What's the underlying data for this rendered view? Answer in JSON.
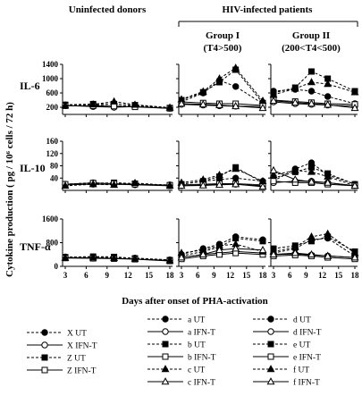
{
  "headers": {
    "uninfected": "Uninfected donors",
    "hiv": "HIV-infected patients",
    "group1_line1": "Group I",
    "group1_line2": "(T4>500)",
    "group2_line1": "Group II",
    "group2_line2": "(200<T4<500)"
  },
  "axes": {
    "ylabel": "Cytokine production ( pg / 10⁶ cells / 72 h)",
    "xlabel": "Days after onset of PHA-activation",
    "x_ticks": [
      3,
      6,
      9,
      12,
      15,
      18
    ],
    "x_range": [
      3,
      18
    ]
  },
  "chart_data": {
    "type": "line",
    "grid": false,
    "legend_placement": "bottom",
    "rows": [
      {
        "label": "IL-6",
        "ylim": [
          0,
          1400
        ],
        "y_ticks": [
          200,
          600,
          1000,
          1400
        ]
      },
      {
        "label": "IL-10",
        "ylim": [
          0,
          160
        ],
        "y_ticks": [
          40,
          80,
          120,
          160
        ]
      },
      {
        "label": "TNF-α",
        "ylim": [
          0,
          1600
        ],
        "y_ticks": [
          0,
          800,
          1600
        ]
      }
    ],
    "x": [
      3,
      7,
      10,
      13,
      18
    ],
    "series_styles": {
      "X UT": {
        "marker": "circle",
        "fill": true,
        "dash": true
      },
      "X IFN-T": {
        "marker": "circle",
        "fill": false,
        "dash": false
      },
      "Z UT": {
        "marker": "square",
        "fill": true,
        "dash": true
      },
      "Z IFN-T": {
        "marker": "square",
        "fill": false,
        "dash": false
      },
      "a UT": {
        "marker": "circle",
        "fill": true,
        "dash": true
      },
      "a IFN-T": {
        "marker": "circle",
        "fill": false,
        "dash": false
      },
      "b UT": {
        "marker": "square",
        "fill": true,
        "dash": true
      },
      "b IFN-T": {
        "marker": "square",
        "fill": false,
        "dash": false
      },
      "c UT": {
        "marker": "triangle",
        "fill": true,
        "dash": true
      },
      "c IFN-T": {
        "marker": "triangle",
        "fill": false,
        "dash": false
      },
      "d UT": {
        "marker": "circle",
        "fill": true,
        "dash": true
      },
      "d IFN-T": {
        "marker": "circle",
        "fill": false,
        "dash": false
      },
      "e UT": {
        "marker": "square",
        "fill": true,
        "dash": true
      },
      "e IFN-T": {
        "marker": "square",
        "fill": false,
        "dash": false
      },
      "f UT": {
        "marker": "triangle",
        "fill": true,
        "dash": true
      },
      "f IFN-T": {
        "marker": "triangle",
        "fill": false,
        "dash": false
      }
    },
    "panels": [
      {
        "row": 0,
        "col": 0,
        "series": [
          {
            "name": "X UT",
            "values": [
              260,
              270,
              230,
              240,
              180
            ]
          },
          {
            "name": "X IFN-T",
            "values": [
              250,
              220,
              200,
              220,
              170
            ]
          },
          {
            "name": "Z UT",
            "values": [
              270,
              290,
              290,
              260,
              180
            ]
          },
          {
            "name": "Z IFN-T",
            "values": [
              240,
              240,
              230,
              210,
              170
            ]
          },
          {
            "name": "c UT",
            "values": [
              250,
              280,
              360,
              270,
              190
            ]
          }
        ]
      },
      {
        "row": 0,
        "col": 1,
        "series": [
          {
            "name": "a UT",
            "values": [
              350,
              600,
              950,
              780,
              300
            ]
          },
          {
            "name": "a IFN-T",
            "values": [
              280,
              260,
              240,
              230,
              220
            ]
          },
          {
            "name": "b UT",
            "values": [
              400,
              620,
              900,
              1250,
              320
            ]
          },
          {
            "name": "b IFN-T",
            "values": [
              350,
              320,
              300,
              300,
              250
            ]
          },
          {
            "name": "c UT",
            "values": [
              420,
              640,
              1000,
              1300,
              380
            ]
          },
          {
            "name": "c IFN-T",
            "values": [
              300,
              280,
              260,
              230,
              180
            ]
          }
        ]
      },
      {
        "row": 0,
        "col": 2,
        "series": [
          {
            "name": "d UT",
            "values": [
              650,
              700,
              650,
              500,
              300
            ]
          },
          {
            "name": "d IFN-T",
            "values": [
              350,
              300,
              280,
              260,
              230
            ]
          },
          {
            "name": "e UT",
            "values": [
              600,
              750,
              1200,
              1000,
              650
            ]
          },
          {
            "name": "e IFN-T",
            "values": [
              400,
              360,
              330,
              300,
              280
            ]
          },
          {
            "name": "f UT",
            "values": [
              550,
              720,
              900,
              850,
              620
            ]
          },
          {
            "name": "f IFN-T",
            "values": [
              380,
              330,
              300,
              270,
              180
            ]
          }
        ]
      },
      {
        "row": 1,
        "col": 0,
        "series": [
          {
            "name": "X UT",
            "values": [
              20,
              25,
              22,
              20,
              18
            ]
          },
          {
            "name": "X IFN-T",
            "values": [
              18,
              20,
              20,
              18,
              15
            ]
          },
          {
            "name": "Z UT",
            "values": [
              18,
              22,
              25,
              22,
              15
            ]
          },
          {
            "name": "Z IFN-T",
            "values": [
              20,
              24,
              22,
              20,
              17
            ]
          },
          {
            "name": "c UT",
            "values": [
              15,
              20,
              18,
              24,
              16
            ]
          }
        ]
      },
      {
        "row": 1,
        "col": 1,
        "series": [
          {
            "name": "a UT",
            "values": [
              20,
              30,
              35,
              40,
              30
            ]
          },
          {
            "name": "a IFN-T",
            "values": [
              15,
              18,
              20,
              20,
              15
            ]
          },
          {
            "name": "b UT",
            "values": [
              20,
              30,
              45,
              75,
              25
            ]
          },
          {
            "name": "b IFN-T",
            "values": [
              18,
              20,
              22,
              22,
              18
            ]
          },
          {
            "name": "c UT",
            "values": [
              25,
              35,
              50,
              70,
              30
            ]
          },
          {
            "name": "c IFN-T",
            "values": [
              15,
              16,
              18,
              20,
              12
            ]
          }
        ]
      },
      {
        "row": 1,
        "col": 2,
        "series": [
          {
            "name": "d UT",
            "values": [
              30,
              70,
              90,
              50,
              20
            ]
          },
          {
            "name": "d IFN-T",
            "values": [
              25,
              30,
              30,
              25,
              15
            ]
          },
          {
            "name": "e UT",
            "values": [
              40,
              60,
              75,
              55,
              20
            ]
          },
          {
            "name": "e IFN-T",
            "values": [
              30,
              25,
              25,
              20,
              15
            ]
          },
          {
            "name": "f UT",
            "values": [
              50,
              65,
              60,
              45,
              15
            ]
          },
          {
            "name": "f IFN-T",
            "values": [
              65,
              35,
              28,
              25,
              15
            ]
          }
        ]
      },
      {
        "row": 2,
        "col": 0,
        "series": [
          {
            "name": "X UT",
            "values": [
              320,
              310,
              300,
              280,
              220
            ]
          },
          {
            "name": "X IFN-T",
            "values": [
              300,
              290,
              270,
              250,
              200
            ]
          },
          {
            "name": "Z UT",
            "values": [
              310,
              330,
              320,
              270,
              210
            ]
          },
          {
            "name": "Z IFN-T",
            "values": [
              280,
              270,
              260,
              240,
              180
            ]
          },
          {
            "name": "c UT",
            "values": [
              290,
              300,
              280,
              260,
              200
            ]
          }
        ]
      },
      {
        "row": 2,
        "col": 1,
        "series": [
          {
            "name": "a UT",
            "values": [
              400,
              600,
              750,
              1000,
              900
            ]
          },
          {
            "name": "a IFN-T",
            "values": [
              300,
              400,
              450,
              500,
              450
            ]
          },
          {
            "name": "b UT",
            "values": [
              350,
              500,
              650,
              950,
              850
            ]
          },
          {
            "name": "b IFN-T",
            "values": [
              250,
              350,
              400,
              450,
              400
            ]
          },
          {
            "name": "c UT",
            "values": [
              450,
              550,
              700,
              750,
              500
            ]
          },
          {
            "name": "c IFN-T",
            "values": [
              300,
              400,
              550,
              600,
              550
            ]
          }
        ]
      },
      {
        "row": 2,
        "col": 2,
        "series": [
          {
            "name": "d UT",
            "values": [
              450,
              600,
              900,
              950,
              350
            ]
          },
          {
            "name": "d IFN-T",
            "values": [
              400,
              420,
              380,
              350,
              300
            ]
          },
          {
            "name": "e UT",
            "values": [
              600,
              700,
              850,
              1000,
              500
            ]
          },
          {
            "name": "e IFN-T",
            "values": [
              350,
              380,
              350,
              300,
              250
            ]
          },
          {
            "name": "f UT",
            "values": [
              500,
              650,
              1000,
              1100,
              450
            ]
          },
          {
            "name": "f IFN-T",
            "values": [
              400,
              450,
              400,
              350,
              300
            ]
          }
        ]
      }
    ]
  },
  "legend": {
    "col1": [
      "X UT",
      "X IFN-T",
      "Z UT",
      "Z IFN-T"
    ],
    "col2": [
      "a UT",
      "a IFN-T",
      "b UT",
      "b IFN-T",
      "c UT",
      "c IFN-T"
    ],
    "col3": [
      "d UT",
      "d IFN-T",
      "e UT",
      "e IFN-T",
      "f UT",
      "f IFN-T"
    ]
  }
}
